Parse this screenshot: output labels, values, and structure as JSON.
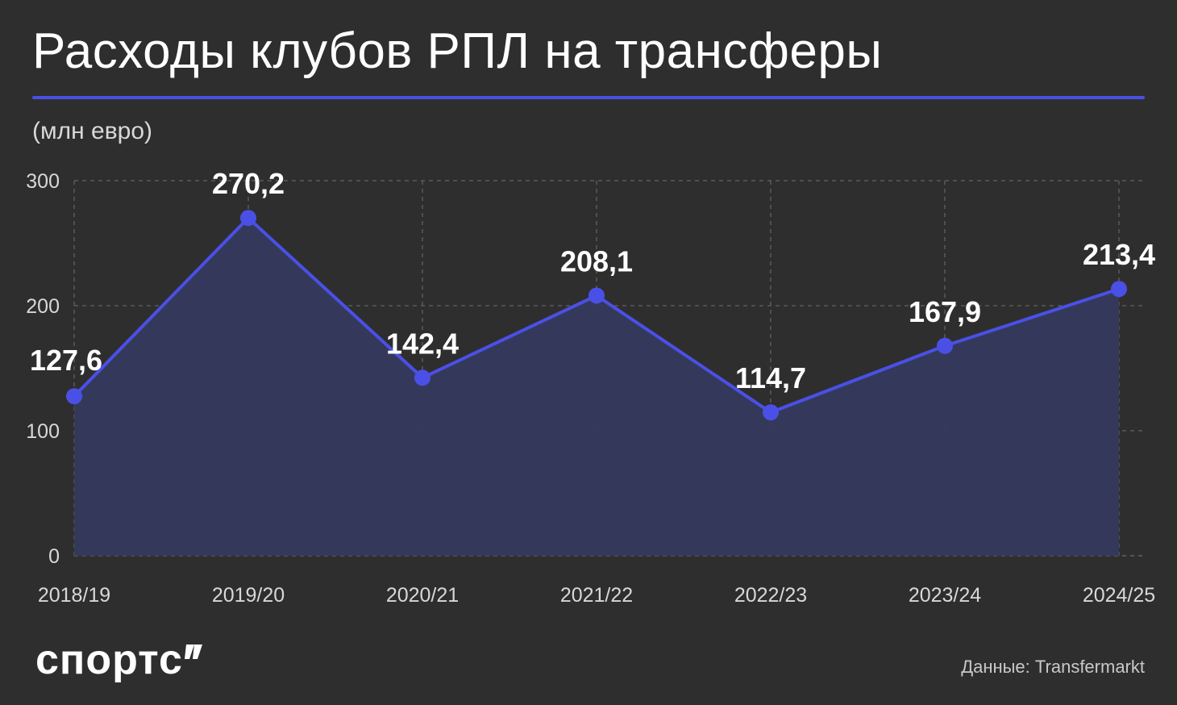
{
  "title": "Расходы клубов РПЛ на трансферы",
  "subtitle": "(млн евро)",
  "logo": "спортс",
  "source": "Данные: Transfermarkt",
  "colors": {
    "background": "#2e2e2e",
    "accent": "#4a50e6",
    "area_fill": "#353a5e",
    "grid": "#5a5a5a",
    "text": "#ffffff",
    "muted_text": "#c8c8c8"
  },
  "chart_data": {
    "type": "area",
    "title": "Расходы клубов РПЛ на трансферы",
    "ylabel": "(млн евро)",
    "xlabel": "",
    "categories": [
      "2018/19",
      "2019/20",
      "2020/21",
      "2021/22",
      "2022/23",
      "2023/24",
      "2024/25"
    ],
    "values": [
      127.6,
      270.2,
      142.4,
      208.1,
      114.7,
      167.9,
      213.4
    ],
    "data_labels": [
      "127,6",
      "270,2",
      "142,4",
      "208,1",
      "114,7",
      "167,9",
      "213,4"
    ],
    "ylim": [
      0,
      300
    ],
    "y_ticks": [
      0,
      100,
      200,
      300
    ],
    "grid": true,
    "grid_style": "dashed",
    "legend": "none"
  }
}
